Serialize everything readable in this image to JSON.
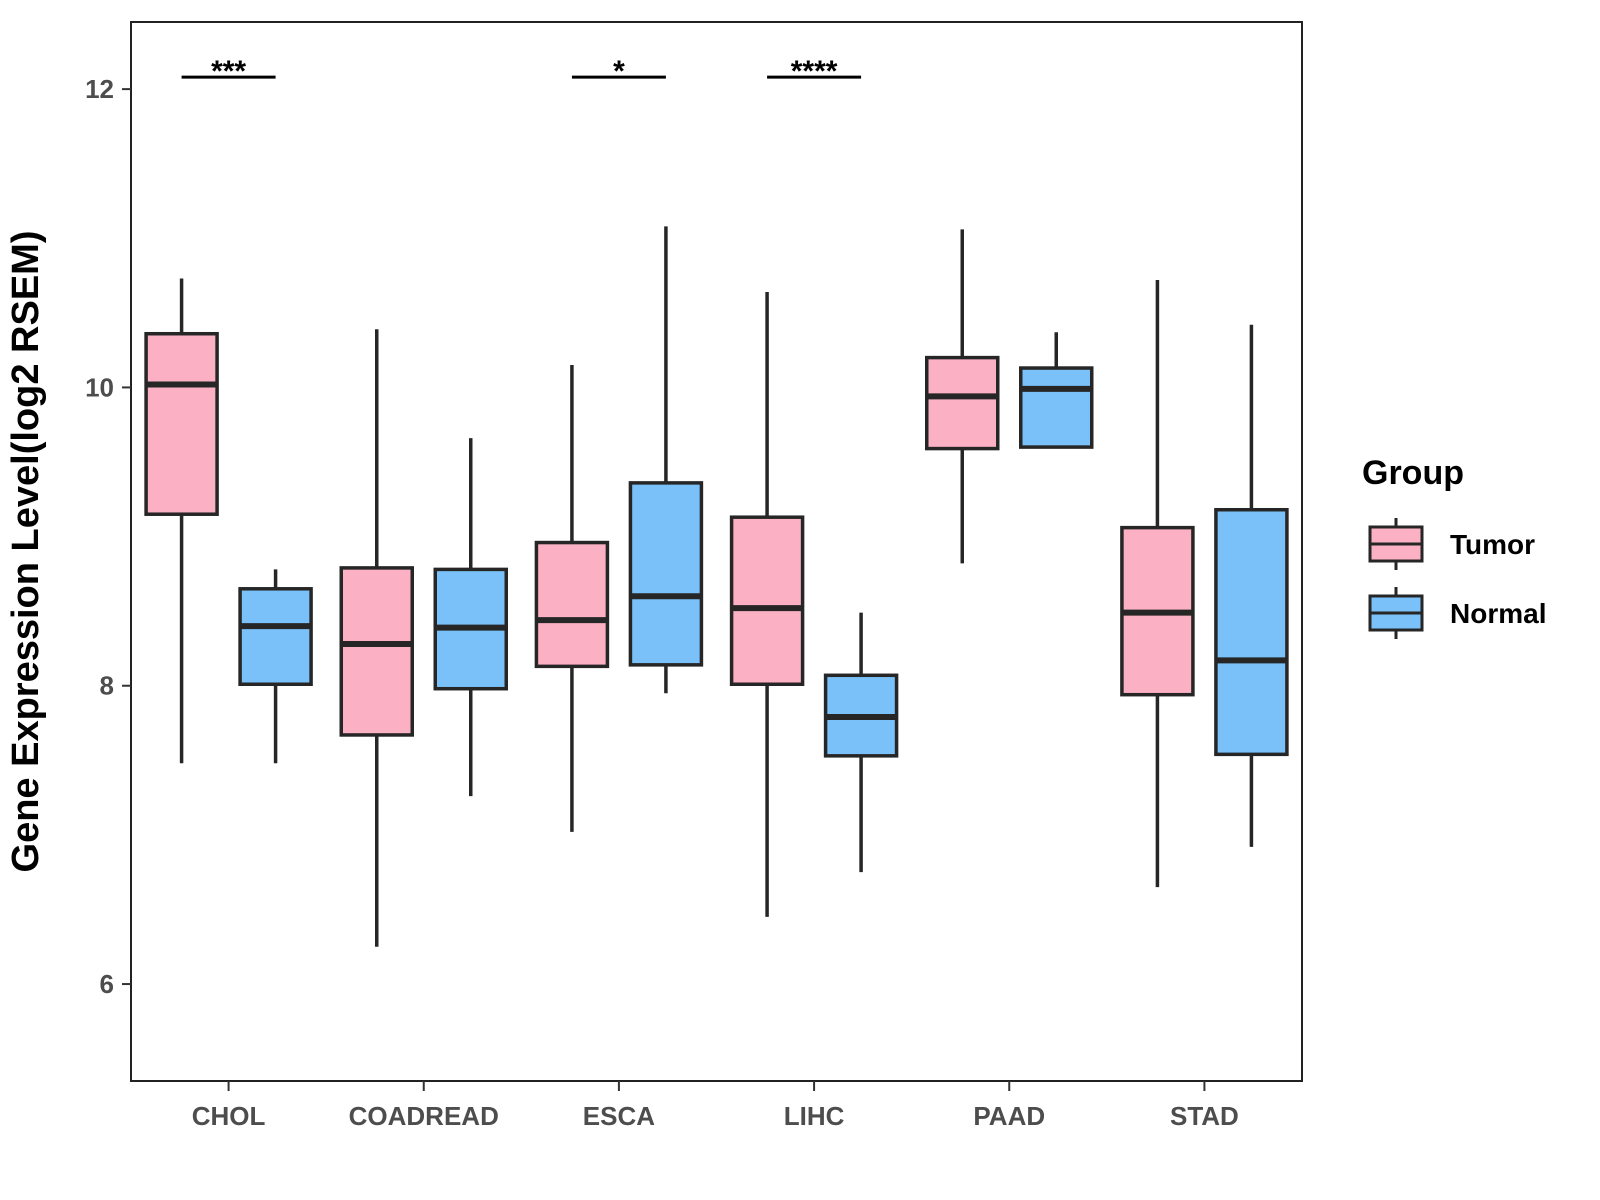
{
  "chart_data": {
    "type": "boxplot",
    "title": "",
    "xlabel": "",
    "ylabel": "Gene Expression Level(log2 RSEM)",
    "ylim": [
      5.35,
      12.45
    ],
    "y_ticks": [
      6,
      8,
      10,
      12
    ],
    "categories": [
      "CHOL",
      "COADREAD",
      "ESCA",
      "LIHC",
      "PAAD",
      "STAD"
    ],
    "series": [
      {
        "name": "Tumor",
        "color": "#FBB1C3",
        "boxes": [
          {
            "category": "CHOL",
            "min": 7.48,
            "q1": 9.15,
            "median": 10.02,
            "q3": 10.36,
            "max": 10.73
          },
          {
            "category": "COADREAD",
            "min": 6.25,
            "q1": 7.67,
            "median": 8.28,
            "q3": 8.79,
            "max": 10.39
          },
          {
            "category": "ESCA",
            "min": 7.02,
            "q1": 8.13,
            "median": 8.44,
            "q3": 8.96,
            "max": 10.15
          },
          {
            "category": "LIHC",
            "min": 6.45,
            "q1": 8.01,
            "median": 8.52,
            "q3": 9.13,
            "max": 10.64
          },
          {
            "category": "PAAD",
            "min": 8.82,
            "q1": 9.59,
            "median": 9.94,
            "q3": 10.2,
            "max": 11.06
          },
          {
            "category": "STAD",
            "min": 6.65,
            "q1": 7.94,
            "median": 8.49,
            "q3": 9.06,
            "max": 10.72
          }
        ]
      },
      {
        "name": "Normal",
        "color": "#79C1F8",
        "boxes": [
          {
            "category": "CHOL",
            "min": 7.48,
            "q1": 8.01,
            "median": 8.4,
            "q3": 8.65,
            "max": 8.78
          },
          {
            "category": "COADREAD",
            "min": 7.26,
            "q1": 7.98,
            "median": 8.39,
            "q3": 8.78,
            "max": 9.66
          },
          {
            "category": "ESCA",
            "min": 7.95,
            "q1": 8.14,
            "median": 8.6,
            "q3": 9.36,
            "max": 11.08
          },
          {
            "category": "LIHC",
            "min": 6.75,
            "q1": 7.53,
            "median": 7.79,
            "q3": 8.07,
            "max": 8.49
          },
          {
            "category": "PAAD",
            "min": 9.6,
            "q1": 9.6,
            "median": 9.99,
            "q3": 10.13,
            "max": 10.37
          },
          {
            "category": "STAD",
            "min": 6.92,
            "q1": 7.54,
            "median": 8.17,
            "q3": 9.18,
            "max": 10.42
          }
        ]
      }
    ],
    "significance": [
      {
        "category": "CHOL",
        "label": "***",
        "y": 12.08
      },
      {
        "category": "ESCA",
        "label": "*",
        "y": 12.08
      },
      {
        "category": "LIHC",
        "label": "****",
        "y": 12.08
      }
    ],
    "legend": {
      "title": "Group",
      "position": "right",
      "items": [
        {
          "label": "Tumor",
          "color": "#FBB1C3"
        },
        {
          "label": "Normal",
          "color": "#79C1F8"
        }
      ]
    }
  }
}
